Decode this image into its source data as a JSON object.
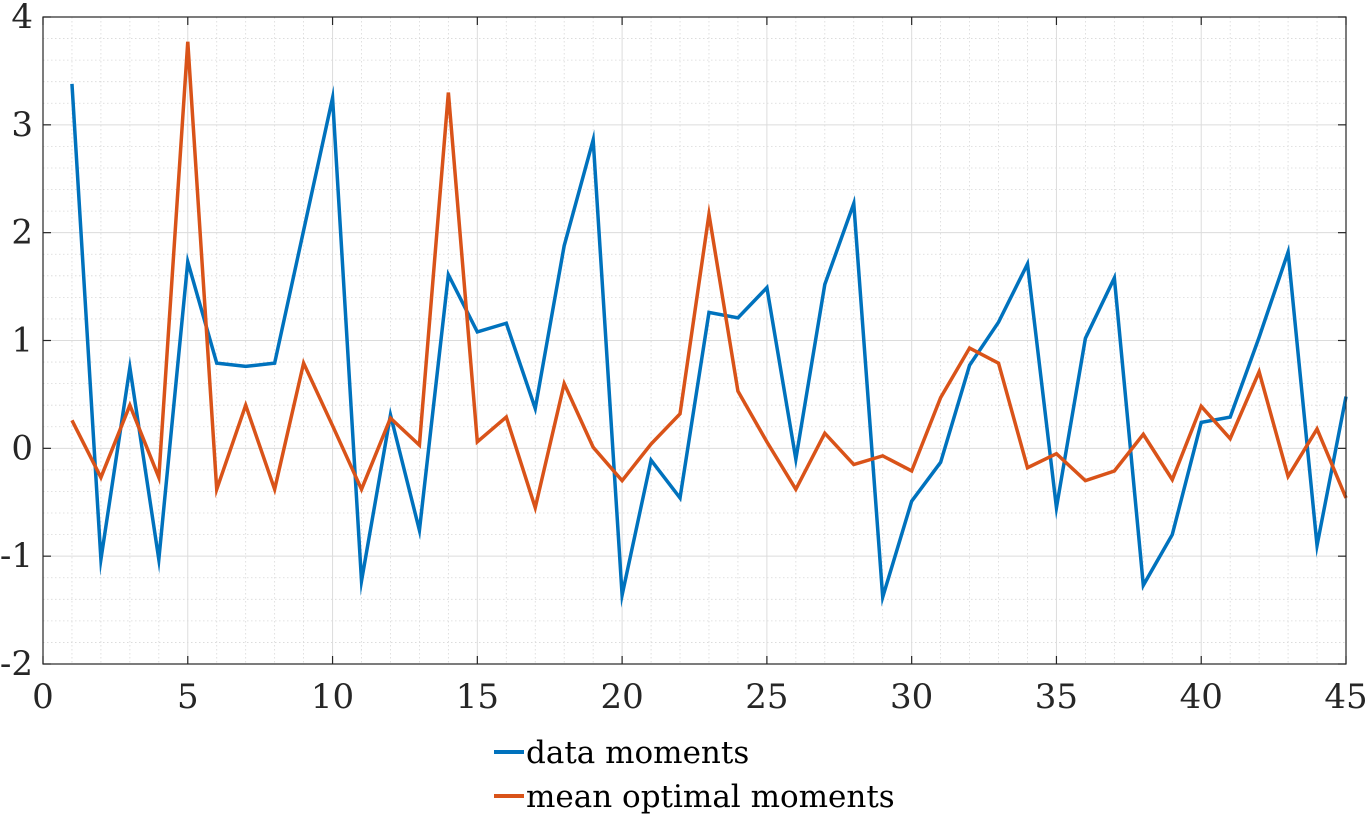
{
  "chart_data": {
    "type": "line",
    "xlim": [
      0,
      45
    ],
    "ylim": [
      -2,
      4
    ],
    "xticks": [
      0,
      5,
      10,
      15,
      20,
      25,
      30,
      35,
      40,
      45
    ],
    "yticks": [
      -2,
      -1,
      0,
      1,
      2,
      3,
      4
    ],
    "xtick_labels": [
      "0",
      "5",
      "10",
      "15",
      "20",
      "25",
      "30",
      "35",
      "40",
      "45"
    ],
    "ytick_labels": [
      "-2",
      "-1",
      "0",
      "1",
      "2",
      "3",
      "4"
    ],
    "grid": true,
    "minor_grid": true,
    "legend_position": "bottom-center",
    "x": [
      1,
      2,
      3,
      4,
      5,
      6,
      7,
      8,
      9,
      10,
      11,
      12,
      13,
      14,
      15,
      16,
      17,
      18,
      19,
      20,
      21,
      22,
      23,
      24,
      25,
      26,
      27,
      28,
      29,
      30,
      31,
      32,
      33,
      34,
      35,
      36,
      37,
      38,
      39,
      40,
      41,
      42,
      43,
      44,
      45
    ],
    "series": [
      {
        "name": "data moments",
        "color": "#0072BD",
        "values": [
          3.38,
          -1.03,
          0.75,
          -1.03,
          1.73,
          0.79,
          0.76,
          0.79,
          2.02,
          3.25,
          -1.23,
          0.31,
          -0.76,
          1.61,
          1.08,
          1.16,
          0.37,
          1.88,
          2.86,
          -1.36,
          -0.11,
          -0.46,
          1.26,
          1.21,
          1.49,
          -0.1,
          1.52,
          2.27,
          -1.38,
          -0.49,
          -0.13,
          0.77,
          1.17,
          1.71,
          -0.55,
          1.02,
          1.58,
          -1.27,
          -0.8,
          0.24,
          0.29,
          1.03,
          1.82,
          -0.9,
          0.48
        ]
      },
      {
        "name": "mean optimal moments",
        "color": "#D95319",
        "values": [
          0.26,
          -0.27,
          0.4,
          -0.27,
          3.77,
          -0.38,
          0.4,
          -0.38,
          0.79,
          0.21,
          -0.38,
          0.28,
          0.03,
          3.3,
          0.06,
          0.29,
          -0.55,
          0.6,
          0.01,
          -0.3,
          0.04,
          0.32,
          2.17,
          0.53,
          0.06,
          -0.38,
          0.14,
          -0.15,
          -0.07,
          -0.21,
          0.47,
          0.93,
          0.79,
          -0.18,
          -0.05,
          -0.3,
          -0.21,
          0.13,
          -0.29,
          0.39,
          0.09,
          0.71,
          -0.26,
          0.18,
          -0.46
        ]
      }
    ]
  }
}
